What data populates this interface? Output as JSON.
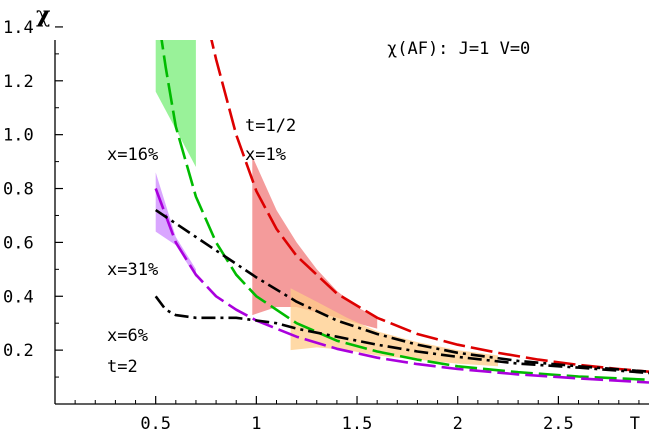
{
  "chart_data": {
    "type": "line",
    "title": "χ(AF):  J=1   V=0",
    "ylabel": "χ",
    "xlabel": "T",
    "xlim": [
      0,
      2.95
    ],
    "ylim": [
      0,
      1.5
    ],
    "x_ticks": [
      "0.5",
      "1",
      "1.5",
      "2",
      "2.5",
      "T"
    ],
    "x_tick_values": [
      0.5,
      1,
      1.5,
      2,
      2.5,
      2.88
    ],
    "y_ticks": [
      "0.2",
      "0.4",
      "0.6",
      "0.8",
      "1.0",
      "1.2",
      "1.4"
    ],
    "y_tick_values": [
      0.2,
      0.4,
      0.6,
      0.8,
      1.0,
      1.2,
      1.4
    ],
    "annotations": [
      "t=1/2",
      "x=1%",
      "x=16%",
      "x=31%",
      "x=6%",
      "t=2"
    ],
    "series": [
      {
        "color": "#dd0000",
        "style": "dashed",
        "x": [
          0.73,
          0.8,
          0.9,
          1.0,
          1.1,
          1.2,
          1.4,
          1.6,
          1.8,
          2.0,
          2.2,
          2.4,
          2.6,
          2.8,
          2.95
        ],
        "y": [
          1.5,
          1.28,
          1.0,
          0.79,
          0.65,
          0.55,
          0.41,
          0.32,
          0.26,
          0.22,
          0.19,
          0.165,
          0.145,
          0.13,
          0.12
        ]
      },
      {
        "color": "#00bb00",
        "style": "dashed",
        "x": [
          0.5,
          0.55,
          0.6,
          0.7,
          0.8,
          0.9,
          1.0,
          1.2,
          1.4,
          1.6,
          1.8,
          2.0,
          2.3,
          2.6,
          2.95
        ],
        "y": [
          1.5,
          1.25,
          1.03,
          0.77,
          0.6,
          0.48,
          0.4,
          0.3,
          0.235,
          0.195,
          0.165,
          0.14,
          0.118,
          0.102,
          0.09
        ]
      },
      {
        "color": "#aa00dd",
        "style": "dashed",
        "x": [
          0.5,
          0.6,
          0.7,
          0.8,
          0.9,
          1.0,
          1.2,
          1.4,
          1.6,
          1.8,
          2.0,
          2.3,
          2.6,
          2.95
        ],
        "y": [
          0.8,
          0.6,
          0.48,
          0.4,
          0.35,
          0.31,
          0.25,
          0.205,
          0.172,
          0.148,
          0.13,
          0.11,
          0.095,
          0.08
        ]
      },
      {
        "color": "#000000",
        "style": "dashdot",
        "x": [
          0.5,
          0.6,
          0.7,
          0.8,
          0.9,
          1.0,
          1.2,
          1.4,
          1.6,
          1.8,
          2.0,
          2.3,
          2.6,
          2.95
        ],
        "y": [
          0.72,
          0.67,
          0.62,
          0.57,
          0.52,
          0.47,
          0.38,
          0.31,
          0.26,
          0.22,
          0.19,
          0.16,
          0.14,
          0.12
        ]
      },
      {
        "color": "#000000",
        "style": "dashdot",
        "x": [
          0.5,
          0.55,
          0.6,
          0.7,
          0.8,
          0.9,
          1.0,
          1.1,
          1.2,
          1.4,
          1.6,
          1.8,
          2.0,
          2.3,
          2.6,
          2.95
        ],
        "y": [
          0.4,
          0.35,
          0.33,
          0.32,
          0.32,
          0.32,
          0.31,
          0.3,
          0.28,
          0.25,
          0.22,
          0.195,
          0.175,
          0.15,
          0.135,
          0.115
        ]
      }
    ],
    "bands": [
      {
        "color": "#77ee77",
        "x": [
          0.5,
          0.6,
          0.7
        ],
        "upper": [
          1.5,
          1.5,
          1.45
        ],
        "lower": [
          1.16,
          1.02,
          0.88
        ]
      },
      {
        "color": "#cc88ff",
        "x": [
          0.5,
          0.6,
          0.7
        ],
        "upper": [
          0.86,
          0.62,
          0.5
        ],
        "lower": [
          0.64,
          0.59,
          0.47
        ]
      },
      {
        "color": "#f07a7a",
        "x": [
          0.98,
          1.1,
          1.2,
          1.3,
          1.4,
          1.5,
          1.6
        ],
        "upper": [
          0.92,
          0.72,
          0.6,
          0.5,
          0.42,
          0.36,
          0.32
        ],
        "lower": [
          0.33,
          0.36,
          0.36,
          0.34,
          0.32,
          0.3,
          0.28
        ]
      },
      {
        "color": "#ffcc88",
        "x": [
          1.17,
          1.3,
          1.45,
          1.6,
          1.8,
          2.0,
          2.2
        ],
        "upper": [
          0.43,
          0.38,
          0.32,
          0.27,
          0.23,
          0.2,
          0.18
        ],
        "lower": [
          0.2,
          0.21,
          0.2,
          0.18,
          0.165,
          0.15,
          0.14
        ]
      }
    ]
  }
}
